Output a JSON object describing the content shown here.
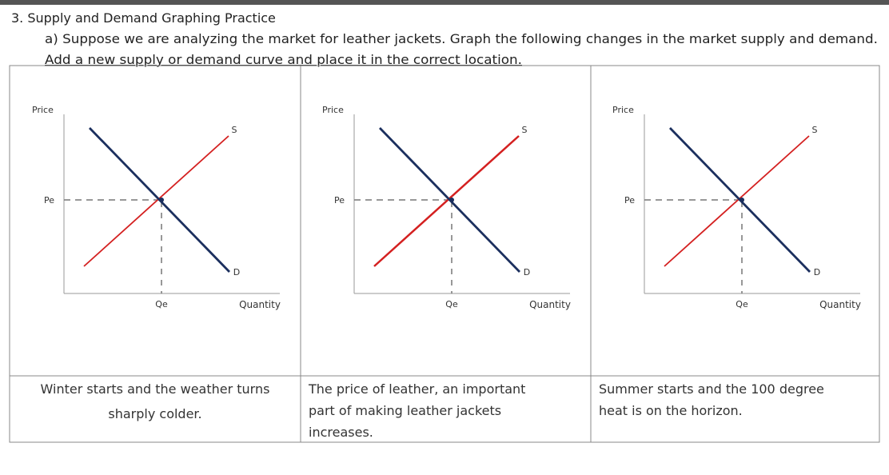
{
  "header": {
    "title": "3. Supply and Demand Graphing Practice",
    "instructions": [
      "a) Suppose we are analyzing the market for leather jackets.  Graph the following changes in the market supply and demand.",
      "Add a new supply or demand curve and place it in the correct location."
    ]
  },
  "panels": [
    {
      "price": "Price",
      "pe": "Pe",
      "qe": "Qe",
      "quantity": "Quantity",
      "supply": "S",
      "demand": "D",
      "caption": [
        "Winter starts and the weather turns",
        "sharply colder."
      ]
    },
    {
      "price": "Price",
      "pe": "Pe",
      "qe": "Qe",
      "quantity": "Quantity",
      "supply": "S",
      "demand": "D",
      "caption": [
        "The price of leather, an important",
        "part of making leather jackets",
        "increases."
      ]
    },
    {
      "price": "Price",
      "pe": "Pe",
      "qe": "Qe",
      "quantity": "Quantity",
      "supply": "S",
      "demand": "D",
      "caption": [
        "Summer starts and the 100 degree",
        "heat is on the horizon."
      ]
    }
  ]
}
